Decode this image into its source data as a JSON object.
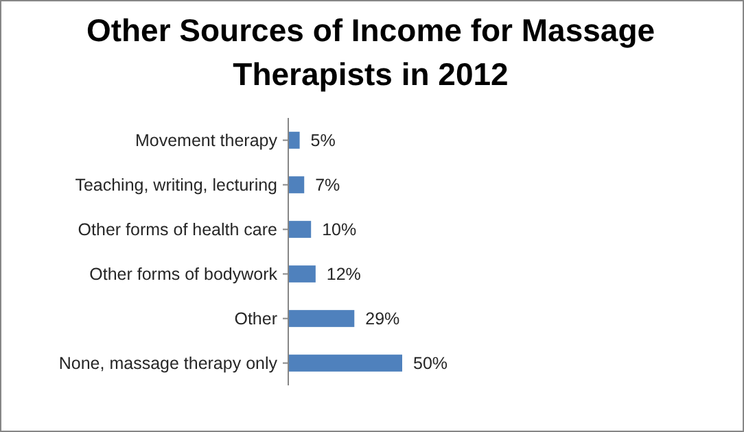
{
  "chart_data": {
    "type": "bar",
    "orientation": "horizontal",
    "title": "Other Sources of Income for Massage Therapists in 2012",
    "categories": [
      "Movement therapy",
      "Teaching, writing, lecturing",
      "Other forms of health care",
      "Other forms of bodywork",
      "Other",
      "None, massage therapy only"
    ],
    "values": [
      5,
      7,
      10,
      12,
      29,
      50
    ],
    "color": "#4f81bd",
    "value_labels": [
      "5%",
      "7%",
      "10%",
      "12%",
      "29%",
      "50%"
    ],
    "tick_labels": "y"
  }
}
